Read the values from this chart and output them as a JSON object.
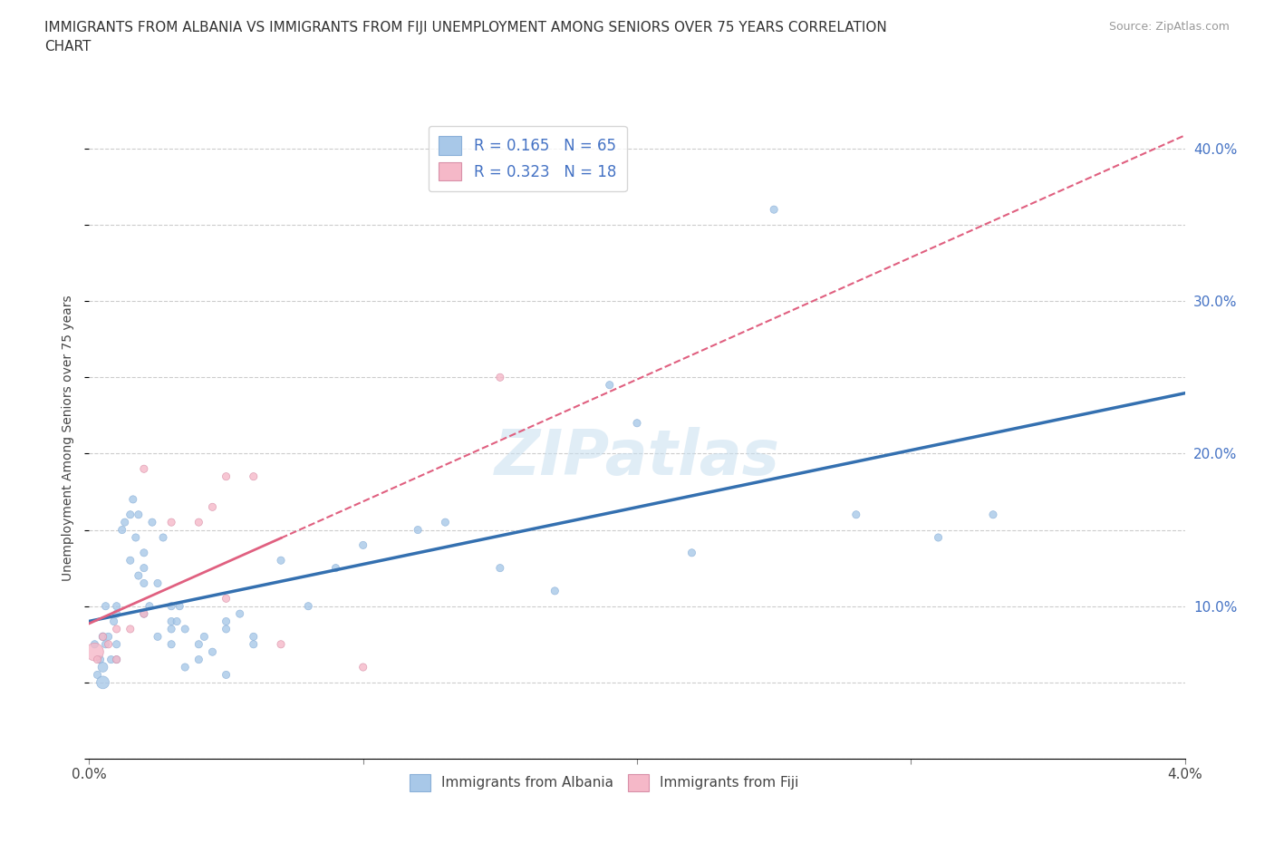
{
  "title": "IMMIGRANTS FROM ALBANIA VS IMMIGRANTS FROM FIJI UNEMPLOYMENT AMONG SENIORS OVER 75 YEARS CORRELATION\nCHART",
  "source": "Source: ZipAtlas.com",
  "ylabel": "Unemployment Among Seniors over 75 years",
  "xlim": [
    0.0,
    0.04
  ],
  "ylim": [
    0.0,
    0.42
  ],
  "xticks": [
    0.0,
    0.01,
    0.02,
    0.03,
    0.04
  ],
  "xticklabels": [
    "0.0%",
    "",
    "",
    "",
    "4.0%"
  ],
  "yticks": [
    0.0,
    0.1,
    0.2,
    0.3,
    0.4
  ],
  "yticklabels": [
    "",
    "10.0%",
    "20.0%",
    "30.0%",
    "40.0%"
  ],
  "albania_color": "#a8c8e8",
  "fiji_color": "#f5b8c8",
  "albania_line_color": "#3470b0",
  "fiji_line_color": "#e06080",
  "background_color": "#ffffff",
  "grid_color": "#cccccc",
  "watermark": "ZIPatlas",
  "legend_R_albania": "R = 0.165",
  "legend_N_albania": "N = 65",
  "legend_R_fiji": "R = 0.323",
  "legend_N_fiji": "N = 18",
  "albania_x": [
    0.0002,
    0.0003,
    0.0004,
    0.0005,
    0.0005,
    0.0005,
    0.0006,
    0.0006,
    0.0007,
    0.0008,
    0.0009,
    0.001,
    0.001,
    0.001,
    0.001,
    0.0012,
    0.0013,
    0.0015,
    0.0015,
    0.0016,
    0.0017,
    0.0018,
    0.0018,
    0.002,
    0.002,
    0.002,
    0.002,
    0.0022,
    0.0023,
    0.0025,
    0.0025,
    0.0027,
    0.003,
    0.003,
    0.003,
    0.003,
    0.0032,
    0.0033,
    0.0035,
    0.0035,
    0.004,
    0.004,
    0.0042,
    0.0045,
    0.005,
    0.005,
    0.005,
    0.0055,
    0.006,
    0.006,
    0.007,
    0.008,
    0.009,
    0.01,
    0.012,
    0.013,
    0.015,
    0.017,
    0.019,
    0.02,
    0.022,
    0.025,
    0.028,
    0.031,
    0.033
  ],
  "albania_y": [
    0.075,
    0.055,
    0.065,
    0.05,
    0.06,
    0.08,
    0.075,
    0.1,
    0.08,
    0.065,
    0.09,
    0.095,
    0.075,
    0.065,
    0.1,
    0.15,
    0.155,
    0.16,
    0.13,
    0.17,
    0.145,
    0.12,
    0.16,
    0.115,
    0.125,
    0.135,
    0.095,
    0.1,
    0.155,
    0.08,
    0.115,
    0.145,
    0.1,
    0.09,
    0.085,
    0.075,
    0.09,
    0.1,
    0.085,
    0.06,
    0.065,
    0.075,
    0.08,
    0.07,
    0.085,
    0.09,
    0.055,
    0.095,
    0.08,
    0.075,
    0.13,
    0.1,
    0.125,
    0.14,
    0.15,
    0.155,
    0.125,
    0.11,
    0.245,
    0.22,
    0.135,
    0.36,
    0.16,
    0.145,
    0.16
  ],
  "albania_sizes": [
    35,
    35,
    35,
    100,
    60,
    40,
    35,
    35,
    35,
    35,
    35,
    35,
    35,
    35,
    35,
    35,
    35,
    35,
    35,
    35,
    35,
    35,
    35,
    35,
    35,
    35,
    35,
    35,
    35,
    35,
    35,
    35,
    35,
    35,
    35,
    35,
    35,
    35,
    35,
    35,
    35,
    35,
    35,
    35,
    35,
    35,
    35,
    35,
    35,
    35,
    35,
    35,
    35,
    35,
    35,
    35,
    35,
    35,
    35,
    35,
    35,
    35,
    35,
    35,
    35
  ],
  "fiji_x": [
    0.0002,
    0.0003,
    0.0005,
    0.0007,
    0.001,
    0.001,
    0.0015,
    0.002,
    0.002,
    0.003,
    0.004,
    0.0045,
    0.005,
    0.005,
    0.006,
    0.007,
    0.01,
    0.015
  ],
  "fiji_y": [
    0.07,
    0.065,
    0.08,
    0.075,
    0.085,
    0.065,
    0.085,
    0.19,
    0.095,
    0.155,
    0.155,
    0.165,
    0.185,
    0.105,
    0.185,
    0.075,
    0.06,
    0.25
  ],
  "fiji_sizes": [
    200,
    35,
    35,
    35,
    35,
    35,
    35,
    35,
    35,
    35,
    35,
    35,
    35,
    35,
    35,
    35,
    35,
    35
  ],
  "fiji_line_solid_end": 0.007
}
